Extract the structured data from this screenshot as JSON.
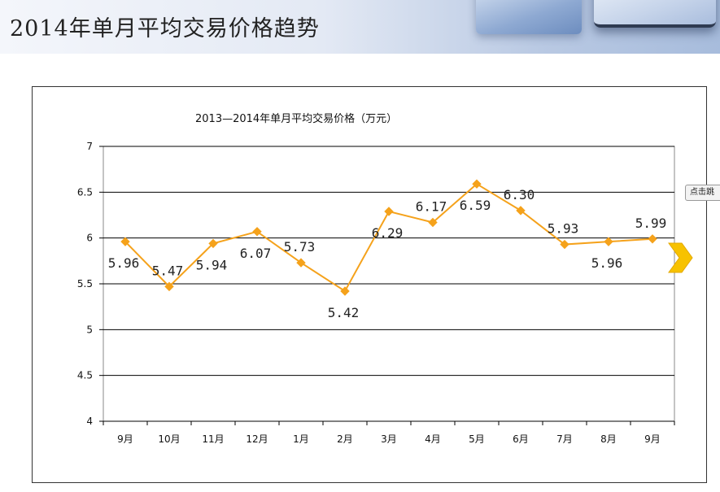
{
  "header": {
    "title": "2014年单月平均交易价格趋势"
  },
  "tooltip": {
    "text": "点击跳"
  },
  "chart_data": {
    "type": "line",
    "title": "2013—2014年单月平均交易价格（万元）",
    "categories": [
      "9月",
      "10月",
      "11月",
      "12月",
      "1月",
      "2月",
      "3月",
      "4月",
      "5月",
      "6月",
      "7月",
      "8月",
      "9月"
    ],
    "values": [
      5.96,
      5.47,
      5.94,
      6.07,
      5.73,
      5.42,
      6.29,
      6.17,
      6.59,
      6.3,
      5.93,
      5.96,
      5.99
    ],
    "data_labels": [
      "5.96",
      "5.47",
      "5.94",
      "6.07",
      "5.73",
      "5.42",
      "6.29",
      "6.17",
      "6.59",
      "6.30",
      "5.93",
      "5.96",
      "5.99"
    ],
    "ylim": [
      4,
      7
    ],
    "yticks": [
      4,
      4.5,
      5,
      5.5,
      6,
      6.5,
      7
    ],
    "ytick_labels": [
      "4",
      "4.5",
      "5",
      "5.5",
      "6",
      "6.5",
      "7"
    ],
    "grid": true,
    "legend": "none",
    "line_color": "#f5a21b",
    "marker": "diamond"
  }
}
